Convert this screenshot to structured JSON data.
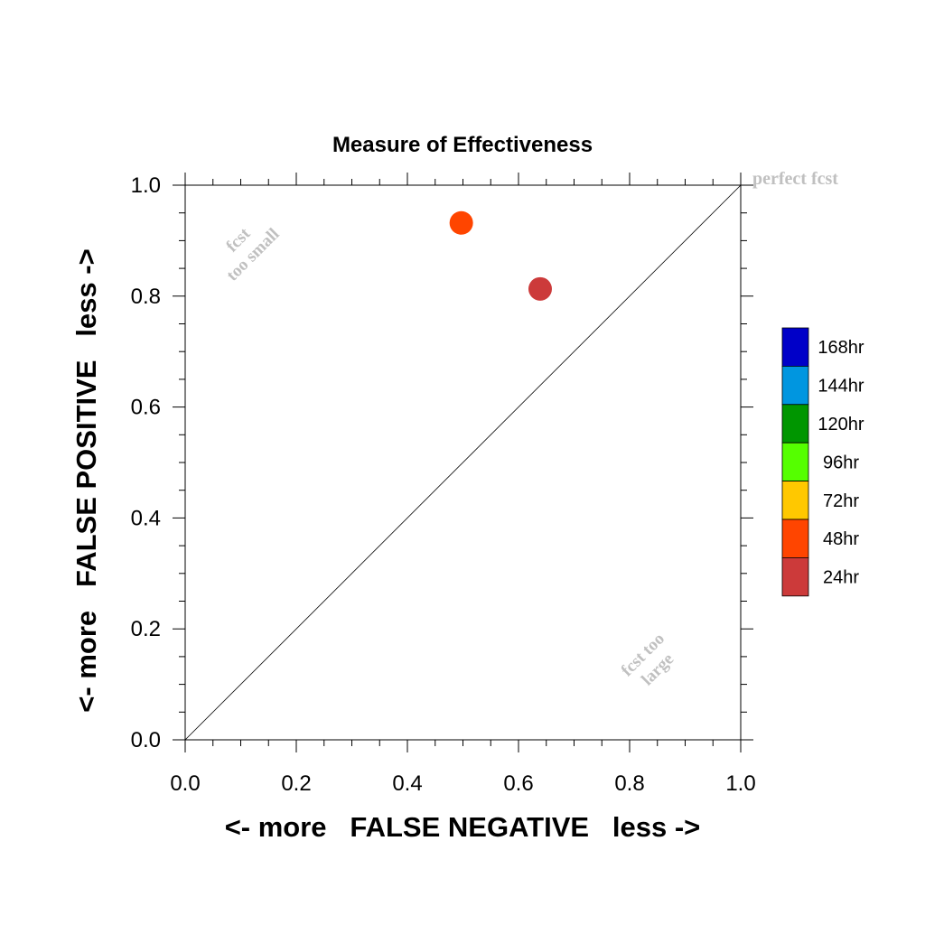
{
  "chart_data": {
    "type": "scatter",
    "title": "Measure of Effectiveness",
    "xlabel": "<- more   FALSE NEGATIVE   less ->",
    "ylabel": "<- more   FALSE POSITIVE   less ->",
    "xlim": [
      0.0,
      1.0
    ],
    "ylim": [
      0.0,
      1.0
    ],
    "xticks": [
      "0.0",
      "0.2",
      "0.4",
      "0.6",
      "0.8",
      "1.0"
    ],
    "yticks": [
      "0.0",
      "0.2",
      "0.4",
      "0.6",
      "0.8",
      "1.0"
    ],
    "grid": false,
    "reference_line": {
      "from": [
        0.0,
        0.0
      ],
      "to": [
        1.0,
        1.0
      ]
    },
    "points": [
      {
        "name": "48hr",
        "x": 0.497,
        "y": 0.932,
        "color": "#ff4500"
      },
      {
        "name": "24hr",
        "x": 0.639,
        "y": 0.813,
        "color": "#cc3a3a"
      }
    ],
    "annotations": {
      "perfect": "perfect fcst",
      "too_small_1": "fcst",
      "too_small_2": "too small",
      "too_large_1": "fcst too",
      "too_large_2": "large"
    },
    "legend_position": "right",
    "legend": [
      {
        "label": "168hr",
        "color": "#0000c8"
      },
      {
        "label": "144hr",
        "color": "#0096e0"
      },
      {
        "label": "120hr",
        "color": "#009600"
      },
      {
        "label": "96hr",
        "color": "#55ff00"
      },
      {
        "label": "72hr",
        "color": "#ffc800"
      },
      {
        "label": "48hr",
        "color": "#ff4500"
      },
      {
        "label": "24hr",
        "color": "#cc3a3a"
      }
    ]
  }
}
